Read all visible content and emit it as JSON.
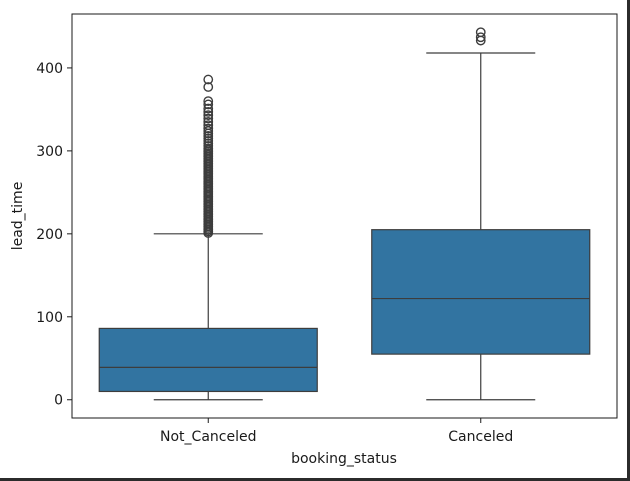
{
  "chart_data": {
    "type": "box",
    "title": "",
    "xlabel": "booking_status",
    "ylabel": "lead_time",
    "categories": [
      "Not_Canceled",
      "Canceled"
    ],
    "ylim": [
      -22,
      465
    ],
    "yticks": [
      0,
      100,
      200,
      300,
      400
    ],
    "grid": false,
    "color": "#3274a1",
    "boxes": [
      {
        "category": "Not_Canceled",
        "whisker_low": 0,
        "q1": 10,
        "median": 39,
        "q3": 86,
        "whisker_high": 200,
        "outliers": [
          201,
          203,
          205,
          207,
          209,
          211,
          213,
          215,
          217,
          219,
          221,
          223,
          225,
          227,
          229,
          231,
          233,
          235,
          237,
          239,
          241,
          243,
          245,
          247,
          249,
          251,
          253,
          255,
          257,
          259,
          261,
          263,
          265,
          267,
          269,
          271,
          273,
          275,
          277,
          279,
          281,
          283,
          285,
          287,
          289,
          291,
          293,
          295,
          297,
          299,
          301,
          303,
          306,
          309,
          312,
          315,
          318,
          321,
          324,
          327,
          331,
          335,
          339,
          343,
          347,
          351,
          356,
          360,
          377,
          386
        ]
      },
      {
        "category": "Canceled",
        "whisker_low": 0,
        "q1": 55,
        "median": 122,
        "q3": 205,
        "whisker_high": 418,
        "outliers": [
          433,
          437,
          443
        ]
      }
    ]
  }
}
